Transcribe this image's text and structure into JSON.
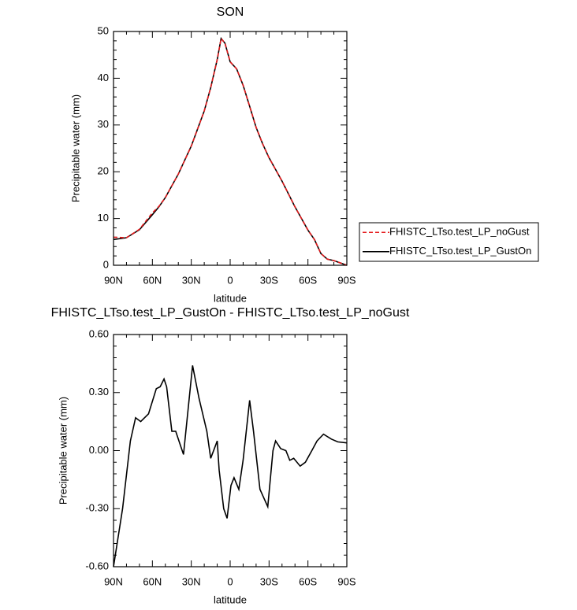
{
  "chart_data": [
    {
      "type": "line",
      "title": "SON",
      "xlabel": "latitude",
      "ylabel": "Precipitable water (mm)",
      "x": [
        90,
        80,
        70,
        60,
        55,
        50,
        40,
        30,
        20,
        15,
        10,
        7,
        4,
        0,
        -5,
        -10,
        -15,
        -20,
        -25,
        -30,
        -40,
        -50,
        -60,
        -65,
        -70,
        -75,
        -80,
        -90
      ],
      "series": [
        {
          "name": "FHISTC_LTso.test_LP_noGust",
          "color": "#e41a1c",
          "line_style": "dashed",
          "values": [
            6.0,
            5.9,
            7.7,
            11.2,
            12.6,
            14.5,
            19.5,
            25.5,
            33,
            38,
            44,
            48.5,
            47.5,
            43.5,
            42,
            38.5,
            34,
            29.5,
            26,
            23,
            18,
            12.5,
            7.5,
            5.5,
            2.5,
            1.3,
            1,
            0
          ]
        },
        {
          "name": "FHISTC_LTso.test_LP_GustOn",
          "color": "#000000",
          "line_style": "solid",
          "values": [
            5.5,
            5.9,
            7.6,
            10.8,
            12.5,
            14.5,
            19.5,
            25.5,
            33,
            38,
            44,
            48.5,
            47.5,
            43.5,
            42,
            38.5,
            34,
            29.5,
            26,
            23,
            18,
            12.5,
            7.5,
            5.5,
            2.5,
            1.3,
            1,
            0
          ]
        }
      ],
      "xlim": [
        90,
        -90
      ],
      "xticks": [
        {
          "value": 90,
          "label": "90N"
        },
        {
          "value": 60,
          "label": "60N"
        },
        {
          "value": 30,
          "label": "30N"
        },
        0,
        {
          "value": -30,
          "label": "30S"
        },
        {
          "value": -60,
          "label": "60S"
        },
        {
          "value": -90,
          "label": "90S"
        }
      ],
      "ylim": [
        0,
        50
      ],
      "yticks": [
        0,
        10,
        20,
        30,
        40,
        50
      ],
      "legend": "right"
    },
    {
      "type": "line",
      "title": "FHISTC_LTso.test_LP_GustOn - FHISTC_LTso.test_LP_noGust",
      "xlabel": "latitude",
      "ylabel": "Precipitable water (mm)",
      "x": [
        90,
        83,
        77,
        73,
        69,
        63,
        57,
        54,
        51,
        49,
        45,
        42,
        38,
        36,
        29,
        24,
        18,
        15,
        10,
        8.5,
        5,
        2.4,
        -0.6,
        -3,
        -6.7,
        -10,
        -15,
        -18,
        -23,
        -29,
        -33,
        -35,
        -39,
        -43,
        -46,
        -49,
        -54,
        -58,
        -63,
        -67,
        -72,
        -78,
        -83,
        -90
      ],
      "color": "#000000",
      "values": [
        -0.6,
        -0.3,
        0.05,
        0.17,
        0.15,
        0.19,
        0.32,
        0.33,
        0.37,
        0.33,
        0.1,
        0.1,
        0.02,
        -0.02,
        0.44,
        0.27,
        0.1,
        -0.04,
        0.05,
        -0.1,
        -0.3,
        -0.35,
        -0.18,
        -0.14,
        -0.2,
        -0.05,
        0.26,
        0.1,
        -0.2,
        -0.29,
        0.0,
        0.05,
        0.01,
        0.0,
        -0.05,
        -0.04,
        -0.08,
        -0.06,
        0.0,
        0.05,
        0.085,
        0.06,
        0.045,
        0.04
      ],
      "xlim": [
        90,
        -90
      ],
      "xticks": [
        {
          "value": 90,
          "label": "90N"
        },
        {
          "value": 60,
          "label": "60N"
        },
        {
          "value": 30,
          "label": "30N"
        },
        0,
        {
          "value": -30,
          "label": "30S"
        },
        {
          "value": -60,
          "label": "60S"
        },
        {
          "value": -90,
          "label": "90S"
        }
      ],
      "ylim": [
        -0.6,
        0.6
      ],
      "yticks": [
        {
          "value": -0.6,
          "label": "-0.60"
        },
        {
          "value": -0.3,
          "label": "-0.30"
        },
        {
          "value": 0,
          "label": "0.00"
        },
        {
          "value": 0.3,
          "label": "0.30"
        },
        {
          "value": 0.6,
          "label": "0.60"
        }
      ]
    }
  ]
}
